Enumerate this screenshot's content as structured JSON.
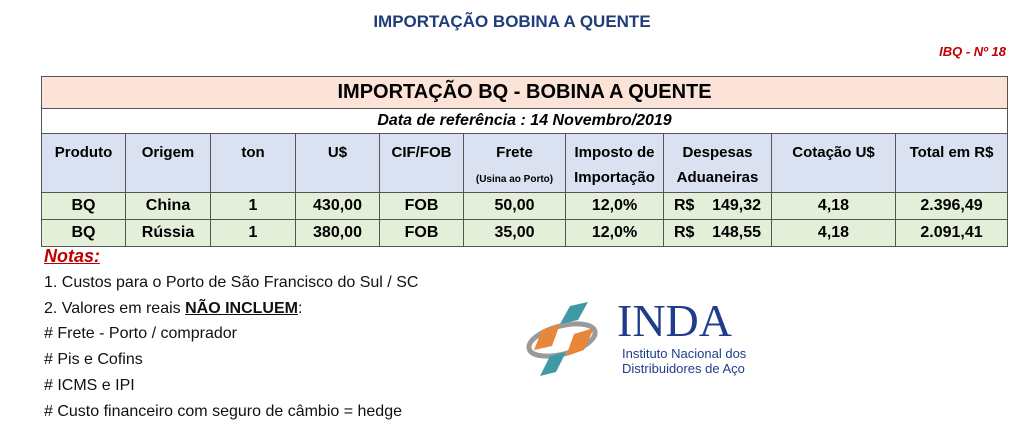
{
  "title": "IMPORTAÇÃO BOBINA A QUENTE",
  "code": "IBQ - Nº 18",
  "table": {
    "title": "IMPORTAÇÃO BQ - BOBINA A QUENTE",
    "date": "Data de referência : 14 Novembro/2019",
    "headers": [
      [
        "Produto",
        ""
      ],
      [
        "Origem",
        ""
      ],
      [
        "ton",
        ""
      ],
      [
        "U$",
        ""
      ],
      [
        "CIF/FOB",
        ""
      ],
      [
        "Frete",
        "(Usina ao Porto)"
      ],
      [
        "Imposto de",
        "Importação"
      ],
      [
        "Despesas",
        "Aduaneiras"
      ],
      [
        "Cotação U$",
        ""
      ],
      [
        "Total em R$",
        ""
      ]
    ],
    "rows": [
      [
        "BQ",
        "China",
        "1",
        "430,00",
        "FOB",
        "50,00",
        "12,0%",
        "149,32",
        "4,18",
        "2.396,49"
      ],
      [
        "BQ",
        "Rússia",
        "1",
        "380,00",
        "FOB",
        "35,00",
        "12,0%",
        "148,55",
        "4,18",
        "2.091,41"
      ]
    ],
    "currency": "R$"
  },
  "notes": {
    "heading": "Notas:",
    "line1": "1. Custos para o Porto de São Francisco do Sul / SC",
    "line2_prefix": "2. Valores em reais ",
    "line2_bold": "NÃO INCLUEM",
    "line2_suffix": ":",
    "items": [
      "# Frete - Porto / comprador",
      "#  Pis e Cofins",
      "# ICMS e IPI",
      "# Custo financeiro com seguro de câmbio = hedge"
    ]
  },
  "logo": {
    "name": "INDA",
    "line1": "Instituto Nacional dos",
    "line2": "Distribuidores de Aço",
    "colors": {
      "blue": "#1f3d8c",
      "orange": "#e8863a",
      "teal": "#3f9aa5",
      "gray": "#9a9a9a"
    }
  }
}
